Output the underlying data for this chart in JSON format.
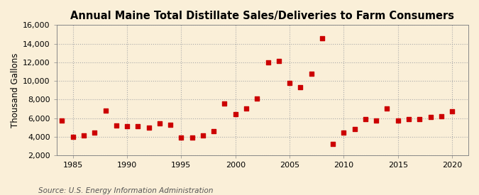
{
  "title": "Annual Maine Total Distillate Sales/Deliveries to Farm Consumers",
  "ylabel": "Thousand Gallons",
  "source": "Source: U.S. Energy Information Administration",
  "background_color": "#faefd8",
  "plot_background_color": "#faefd8",
  "marker_color": "#cc0000",
  "marker_size": 18,
  "years": [
    1984,
    1985,
    1986,
    1987,
    1988,
    1989,
    1990,
    1991,
    1992,
    1993,
    1994,
    1995,
    1996,
    1997,
    1998,
    1999,
    2000,
    2001,
    2002,
    2003,
    2004,
    2005,
    2006,
    2007,
    2008,
    2009,
    2010,
    2011,
    2012,
    2013,
    2014,
    2015,
    2016,
    2017,
    2018,
    2019,
    2020
  ],
  "values": [
    5700,
    4000,
    4100,
    4400,
    6800,
    5200,
    5100,
    5100,
    5000,
    5400,
    5300,
    3900,
    3900,
    4100,
    4600,
    7600,
    6400,
    7000,
    8100,
    12000,
    12100,
    9800,
    9300,
    10800,
    14600,
    3200,
    4400,
    4800,
    5900,
    5700,
    7000,
    5700,
    5900,
    5900,
    6100,
    6200,
    6700
  ],
  "xlim": [
    1983.5,
    2021.5
  ],
  "ylim": [
    2000,
    16000
  ],
  "yticks": [
    2000,
    4000,
    6000,
    8000,
    10000,
    12000,
    14000,
    16000
  ],
  "xticks": [
    1985,
    1990,
    1995,
    2000,
    2005,
    2010,
    2015,
    2020
  ],
  "title_fontsize": 10.5,
  "label_fontsize": 8.5,
  "tick_fontsize": 8,
  "source_fontsize": 7.5,
  "grid_color": "#aaaaaa",
  "grid_linestyle": ":",
  "grid_linewidth": 0.8,
  "spine_color": "#888888"
}
